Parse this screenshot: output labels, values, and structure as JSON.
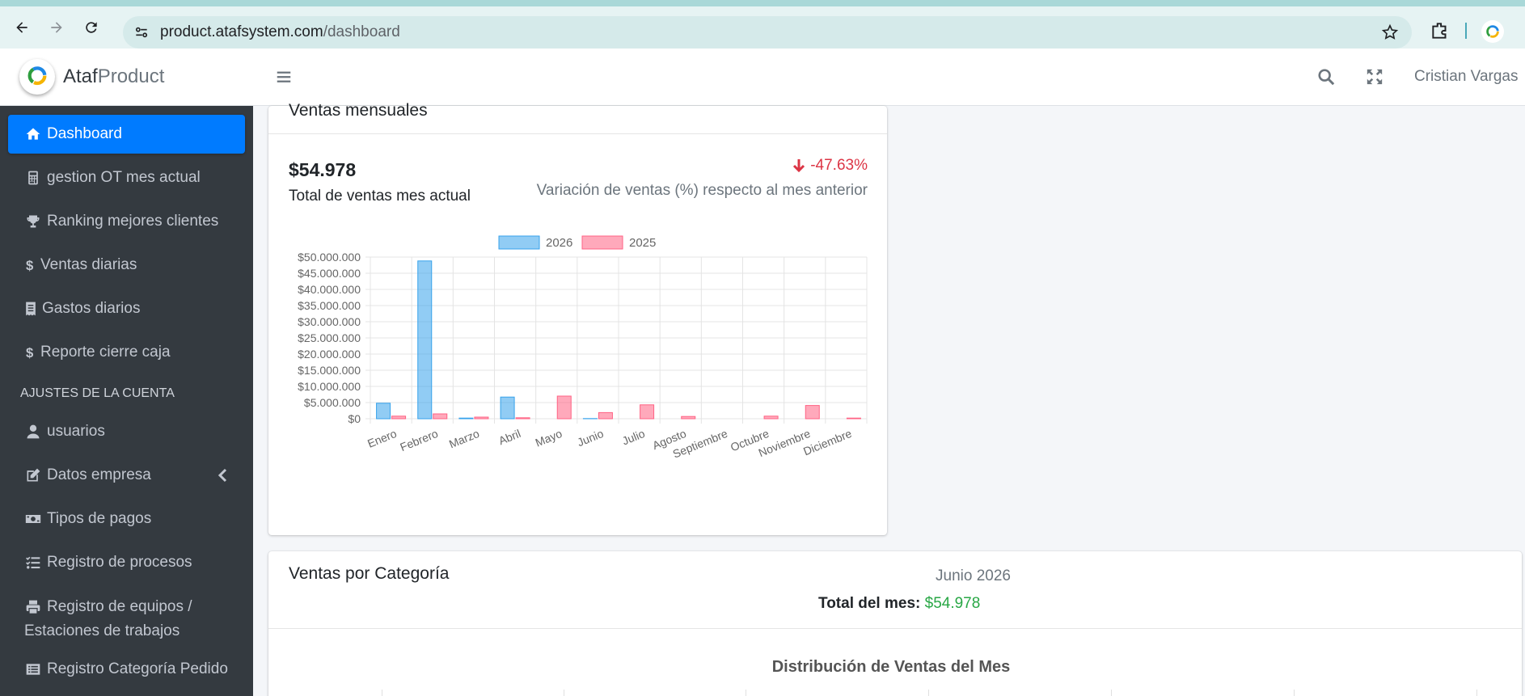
{
  "browser": {
    "url_host": "product.atafsystem.com",
    "url_path": "/dashboard"
  },
  "brand": {
    "name_bold": "Ataf",
    "name_light": "Product"
  },
  "topbar": {
    "user_name": "Cristian Vargas"
  },
  "sidebar": {
    "items": [
      {
        "label": "Dashboard",
        "icon": "home-icon",
        "active": true
      },
      {
        "label": "gestion OT mes actual",
        "icon": "calculator-icon"
      },
      {
        "label": "Ranking mejores clientes",
        "icon": "trophy-icon"
      },
      {
        "label": "Ventas diarias",
        "icon": "dollar-icon"
      },
      {
        "label": "Gastos diarios",
        "icon": "receipt-icon"
      },
      {
        "label": "Reporte cierre caja",
        "icon": "dollar-icon"
      }
    ],
    "section_header": "AJUSTES DE LA CUENTA",
    "settings_items": [
      {
        "label": "usuarios",
        "icon": "user-icon"
      },
      {
        "label": "Datos empresa",
        "icon": "edit-icon"
      },
      {
        "label": "Tipos de pagos",
        "icon": "money-icon"
      },
      {
        "label": "Registro de procesos",
        "icon": "tasks-icon"
      },
      {
        "label_line1": "Registro de equipos /",
        "label_line2": "Estaciones de trabajos",
        "icon": "printer-icon"
      },
      {
        "label": "Registro Categoría Pedido",
        "icon": "list-icon"
      }
    ]
  },
  "monthly_card": {
    "title": "Ventas mensuales",
    "total_value": "$54.978",
    "total_label": "Total de ventas mes actual",
    "variation": "-47.63%",
    "variation_label": "Variación de ventas (%) respecto al mes anterior"
  },
  "chart_data": {
    "type": "bar",
    "categories": [
      "Enero",
      "Febrero",
      "Marzo",
      "Abril",
      "Mayo",
      "Junio",
      "Julio",
      "Agosto",
      "Septiembre",
      "Octubre",
      "Noviembre",
      "Diciembre"
    ],
    "series": [
      {
        "name": "2026",
        "values": [
          4800000,
          48800000,
          200000,
          6700000,
          0,
          55000,
          0,
          0,
          0,
          0,
          0,
          0
        ],
        "color": "#36a2eb"
      },
      {
        "name": "2025",
        "values": [
          800000,
          1500000,
          500000,
          300000,
          7000000,
          1900000,
          4300000,
          700000,
          0,
          800000,
          4100000,
          200000
        ],
        "color": "#ff6384"
      }
    ],
    "ylim": [
      0,
      50000000
    ],
    "yticks": [
      "$0",
      "$5.000.000",
      "$10.000.000",
      "$15.000.000",
      "$20.000.000",
      "$25.000.000",
      "$30.000.000",
      "$35.000.000",
      "$40.000.000",
      "$45.000.000",
      "$50.000.000"
    ],
    "legend_position": "top",
    "grid": true
  },
  "category_card": {
    "title": "Ventas por Categoría",
    "period": "Junio 2026",
    "total_label": "Total del mes:",
    "total_value": "$54.978",
    "dist_title": "Distribución de Ventas del Mes"
  }
}
